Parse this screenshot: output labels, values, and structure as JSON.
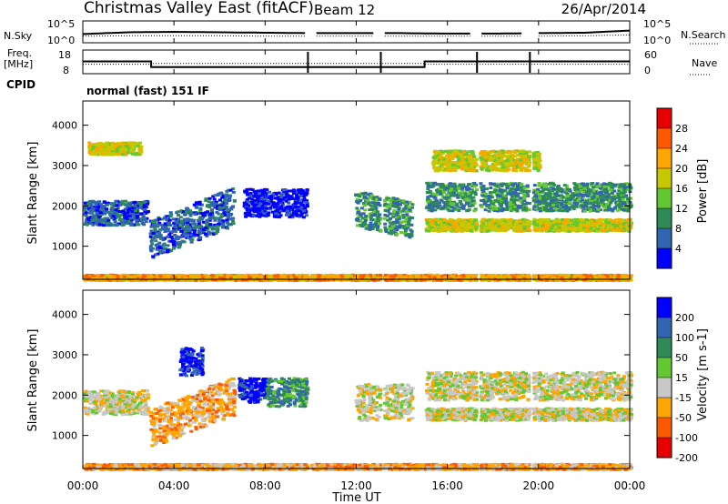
{
  "header": {
    "title": "Christmas Valley East (fitACF)",
    "beam": "Beam 12",
    "date": "26/Apr/2014"
  },
  "chart_data": [
    {
      "type": "line",
      "name": "noise-panel",
      "left_label": "N.Sky",
      "right_label": "N.Search",
      "left_ticks": [
        "10^5",
        "10^0"
      ],
      "right_ticks": [
        "10^5",
        "10^0"
      ],
      "x": [
        0,
        2,
        4,
        6,
        8,
        10,
        12,
        14,
        16,
        18,
        20,
        22,
        24
      ],
      "sky_exponent": [
        2.0,
        2.4,
        2.5,
        2.4,
        2.3,
        2.2,
        2.2,
        2.2,
        2.1,
        2.1,
        2.2,
        2.3,
        2.8
      ],
      "search_exponent": [
        1.5,
        1.6,
        1.6,
        1.6,
        1.5,
        1.5,
        1.5,
        1.5,
        1.5,
        1.5,
        1.5,
        1.6,
        1.8
      ],
      "gaps_hours": [
        9.88,
        13.08,
        17.3,
        19.62
      ]
    },
    {
      "type": "line",
      "name": "frequency-panel",
      "left_label": "Freq. [MHz]",
      "right_label": "Nave",
      "left_ticks": [
        "18",
        "8"
      ],
      "right_ticks": [
        "60",
        "0"
      ],
      "freq_steps": [
        {
          "from": 0,
          "to": 3.0,
          "value": 13.2
        },
        {
          "from": 3.0,
          "to": 15.0,
          "value": 10.8
        },
        {
          "from": 15.0,
          "to": 24,
          "value": 13.2
        }
      ],
      "nave": [
        {
          "from": 0,
          "to": 3.0,
          "value": 24
        },
        {
          "from": 3.0,
          "to": 15.0,
          "value": 26
        },
        {
          "from": 15.0,
          "to": 24,
          "value": 24
        }
      ]
    },
    {
      "type": "table",
      "name": "cpid",
      "label": "CPID",
      "value": "normal (fast) 151 IF"
    },
    {
      "type": "heatmap",
      "name": "power-panel",
      "ylabel": "Slant Range [km]",
      "ylim": [
        180,
        4600
      ],
      "yticks": [
        1000,
        2000,
        3000,
        4000
      ],
      "colorbar": {
        "label": "Power [dB]",
        "ticks": [
          "28",
          "24",
          "20",
          "16",
          "12",
          "8",
          "4"
        ],
        "colors": [
          "#e60000",
          "#ff5a00",
          "#ffa500",
          "#c8c800",
          "#64c832",
          "#2e8b57",
          "#3264b4",
          "#0000ff"
        ]
      },
      "features": [
        {
          "t0": 0.0,
          "t1": 2.8,
          "r0": 1550,
          "r1": 2150,
          "level": 6
        },
        {
          "t0": 0.2,
          "t1": 2.5,
          "r0": 3300,
          "r1": 3600,
          "level": 3
        },
        {
          "t0": 2.9,
          "t1": 6.6,
          "r0": 1050,
          "r1": 2000,
          "level": 6,
          "slope": 0.85
        },
        {
          "t0": 7.0,
          "t1": 9.8,
          "r0": 1750,
          "r1": 2450,
          "level": 7
        },
        {
          "t0": 11.9,
          "t1": 14.4,
          "r0": 1400,
          "r1": 2300,
          "level": 5,
          "slope": -0.3
        },
        {
          "t0": 15.0,
          "t1": 24.0,
          "r0": 1900,
          "r1": 2600,
          "level": 5
        },
        {
          "t0": 15.0,
          "t1": 24.0,
          "r0": 1400,
          "r1": 1700,
          "level": 3
        },
        {
          "t0": 15.3,
          "t1": 20.0,
          "r0": 2900,
          "r1": 3400,
          "level": 3
        },
        {
          "t0": 0.0,
          "t1": 24.0,
          "r0": 180,
          "r1": 320,
          "level": 2
        }
      ]
    },
    {
      "type": "heatmap",
      "name": "velocity-panel",
      "ylabel": "Slant Range [km]",
      "ylim": [
        180,
        4600
      ],
      "yticks": [
        1000,
        2000,
        3000,
        4000
      ],
      "colorbar": {
        "label": "Velocity [m s-1]",
        "ticks": [
          "200",
          "100",
          "50",
          "15",
          "-15",
          "-50",
          "-100",
          "-200"
        ],
        "colors": [
          "#0000ff",
          "#3264b4",
          "#2e8b57",
          "#64c832",
          "#c8c8c8",
          "#ffa500",
          "#ff5a00",
          "#e60000"
        ]
      },
      "features": [
        {
          "t0": 0.0,
          "t1": 2.8,
          "r0": 1550,
          "r1": 2150,
          "level": 4
        },
        {
          "t0": 2.9,
          "t1": 6.6,
          "r0": 1050,
          "r1": 2000,
          "level": 5,
          "slope": 0.85
        },
        {
          "t0": 4.2,
          "t1": 5.2,
          "r0": 2500,
          "r1": 3200,
          "level": 0
        },
        {
          "t0": 6.8,
          "t1": 8.0,
          "r0": 1850,
          "r1": 2450,
          "level": 0
        },
        {
          "t0": 8.0,
          "t1": 9.8,
          "r0": 1750,
          "r1": 2450,
          "level": 2
        },
        {
          "t0": 11.9,
          "t1": 14.4,
          "r0": 1400,
          "r1": 2300,
          "level": 4
        },
        {
          "t0": 15.0,
          "t1": 24.0,
          "r0": 1900,
          "r1": 2600,
          "level": 4
        },
        {
          "t0": 15.0,
          "t1": 24.0,
          "r0": 1400,
          "r1": 1700,
          "level": 4
        },
        {
          "t0": 0.0,
          "t1": 24.0,
          "r0": 180,
          "r1": 320,
          "level": 5
        }
      ]
    }
  ],
  "time_axis": {
    "ticks": [
      "00:00",
      "04:00",
      "08:00",
      "12:00",
      "16:00",
      "20:00",
      "00:00"
    ],
    "hours": [
      0,
      4,
      8,
      12,
      16,
      20,
      24
    ],
    "label": "Time UT"
  }
}
